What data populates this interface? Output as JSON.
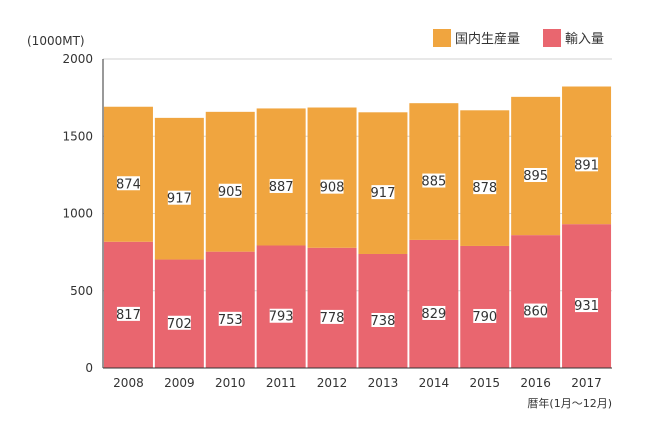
{
  "colors": {
    "domestic": "#F0A53F",
    "imports": "#E9666F",
    "grid": "#D2D2D2",
    "axis": "#333333",
    "text": "#333333"
  },
  "chart_data": {
    "type": "bar",
    "stacked": true,
    "unit_label": "(1000MT)",
    "xlabel": "暦年(1月～12月)",
    "ylim": [
      0,
      2000
    ],
    "yticks": [
      0,
      500,
      1000,
      1500,
      2000
    ],
    "grid": true,
    "legend_position": "top-right",
    "categories": [
      "2008",
      "2009",
      "2010",
      "2011",
      "2012",
      "2013",
      "2014",
      "2015",
      "2016",
      "2017"
    ],
    "series": [
      {
        "name": "輸入量",
        "color_key": "imports",
        "values": [
          817,
          702,
          753,
          793,
          778,
          738,
          829,
          790,
          860,
          931
        ]
      },
      {
        "name": "国内生産量",
        "color_key": "domestic",
        "values": [
          874,
          917,
          905,
          887,
          908,
          917,
          885,
          878,
          895,
          891
        ]
      }
    ],
    "legend": [
      {
        "name": "国内生産量",
        "color_key": "domestic"
      },
      {
        "name": "輸入量",
        "color_key": "imports"
      }
    ]
  }
}
